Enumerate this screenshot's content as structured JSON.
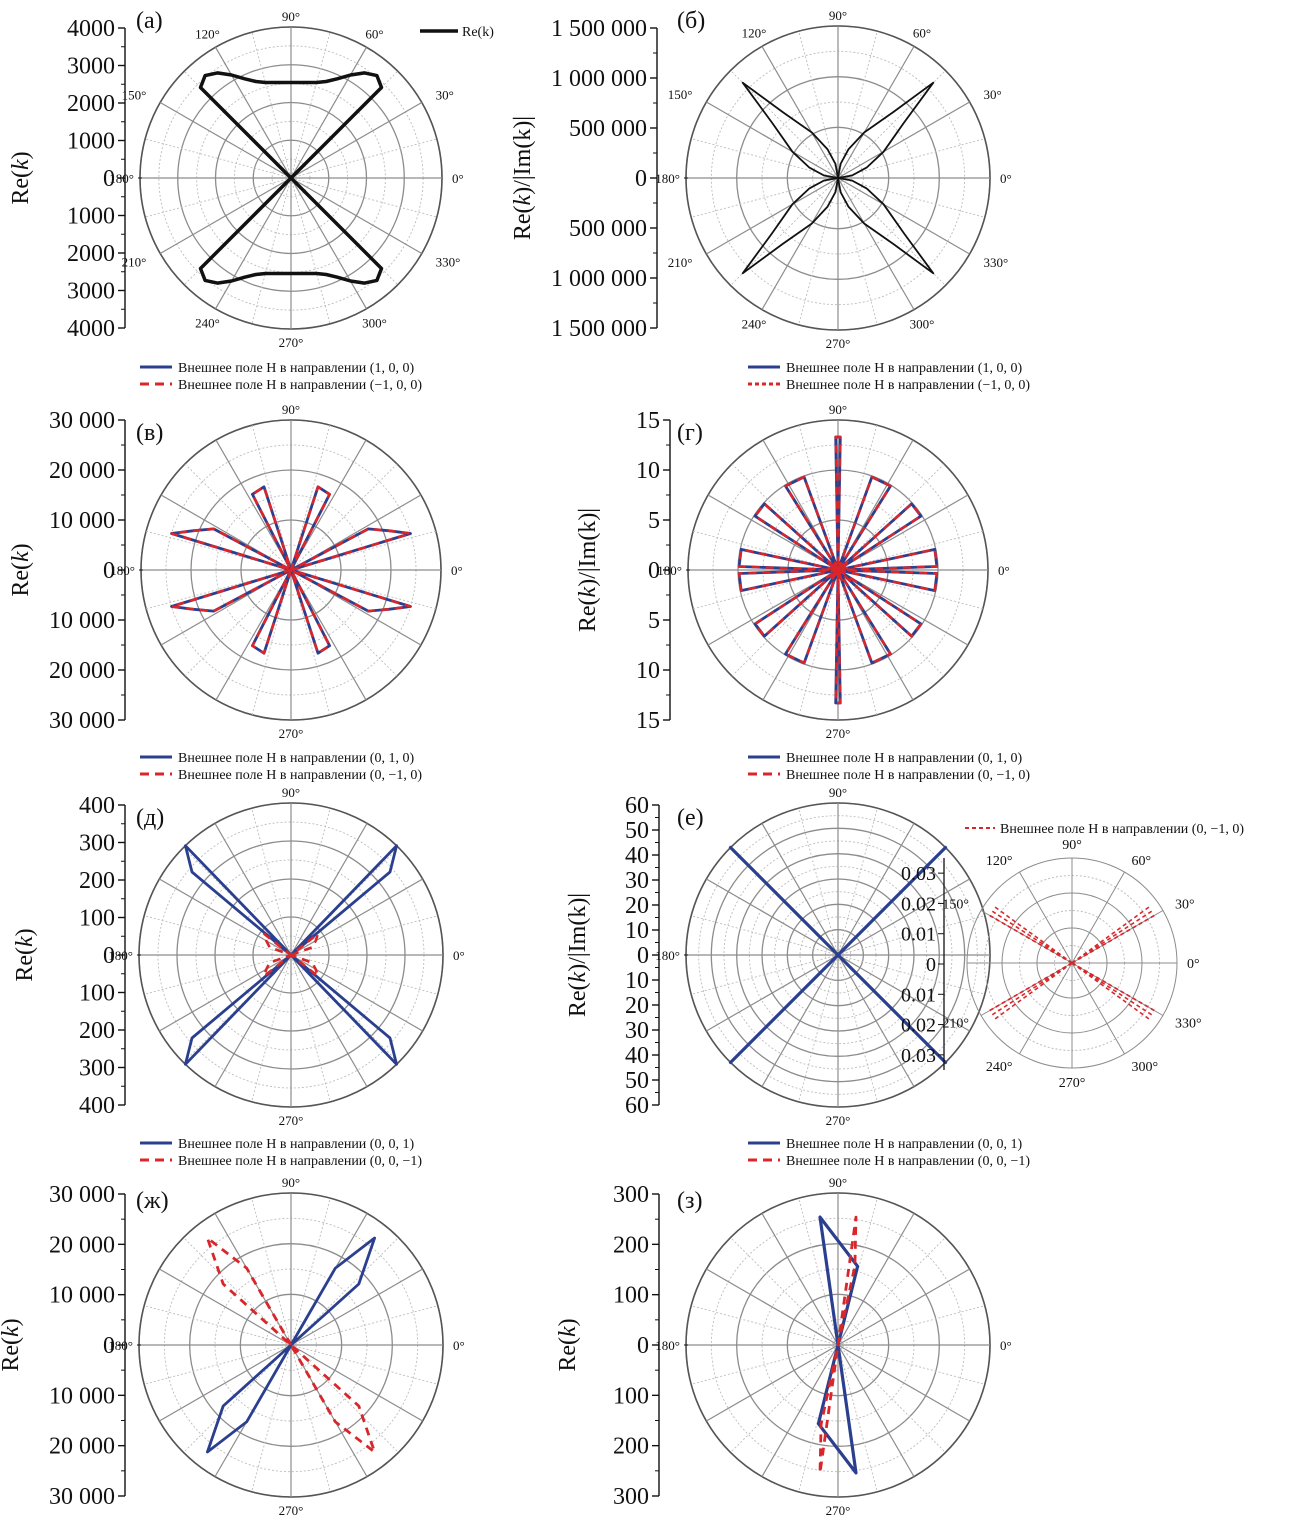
{
  "figure_title": "",
  "colors": {
    "black": "#111111",
    "blue": "#2b3f8f",
    "red": "#d9262b",
    "grid_major": "#8c8c8c",
    "grid_minor": "#bdbdbd"
  },
  "chart_data": [
    {
      "id": "a",
      "panel_label": "(а)",
      "type": "polar",
      "ylabel": "Re(",
      "ylabel_var": "k",
      "ylabel_tail": ")",
      "rmax": 4000,
      "ticks": [
        "4000",
        "3000",
        "2000",
        "1000",
        "0",
        "1000",
        "2000",
        "3000",
        "4000"
      ],
      "angle_labels": [
        "0°",
        "30°",
        "60°",
        "90°",
        "120°",
        "150°",
        "180°",
        "210°",
        "240°",
        "270°",
        "300°",
        "330°"
      ],
      "legend": [
        {
          "name": "Re(k)",
          "style": "solid",
          "color": "#111111"
        }
      ],
      "series": [
        {
          "name": "Re(k)",
          "shape": "a",
          "color": "#111111",
          "dash": "",
          "width": 3.5,
          "marker": true,
          "data_degrees": [
            0,
            45,
            50,
            55,
            60,
            65,
            70,
            75,
            80,
            85,
            90
          ],
          "data_values": [
            0,
            3390,
            3540,
            3400,
            3150,
            2900,
            2720,
            2620,
            2570,
            2540,
            2530
          ]
        }
      ]
    },
    {
      "id": "b",
      "panel_label": "(б)",
      "type": "polar",
      "ylabel": "Re(",
      "ylabel_var": "k",
      "ylabel_tail": ")/|Im(k)|",
      "rmax": 1500000,
      "ticks": [
        "1 500 000",
        "1 000 000",
        "500 000",
        "0",
        "500 000",
        "1 000 000",
        "1 500 000"
      ],
      "angle_labels": [
        "0°",
        "30°",
        "60°",
        "90°",
        "120°",
        "150°",
        "180°",
        "210°",
        "240°",
        "270°",
        "300°",
        "330°"
      ],
      "legend": [],
      "series": [
        {
          "name": "",
          "shape": "b",
          "color": "#111111",
          "dash": "",
          "width": 1.8,
          "data_degrees": [
            0,
            10,
            20,
            30,
            40,
            45,
            50,
            60,
            70,
            80,
            90
          ],
          "data_values": [
            0,
            140000,
            300000,
            520000,
            850000,
            1330000,
            850000,
            520000,
            300000,
            140000,
            0
          ]
        }
      ]
    },
    {
      "id": "v",
      "panel_label": "(в)",
      "type": "polar",
      "ylabel": "Re(",
      "ylabel_var": "k",
      "ylabel_tail": ")",
      "rmax": 30000,
      "ticks": [
        "30 000",
        "20 000",
        "10 000",
        "0",
        "10 000",
        "20 000",
        "30 000"
      ],
      "angle_labels": [
        "0°",
        "90°",
        "180°",
        "270°"
      ],
      "legend": [
        {
          "name": "Внешнее поле H в направлении (1, 0, 0)",
          "style": "solid",
          "color": "#2b3f8f"
        },
        {
          "name": "Внешнее поле H в направлении (−1, 0, 0)",
          "style": "dashed",
          "color": "#d9262b"
        }
      ],
      "series": [
        {
          "name": "Внешнее поле H в направлении (1, 0, 0)",
          "shape": "v",
          "color": "#2b3f8f",
          "dash": "",
          "width": 2.8
        },
        {
          "name": "Внешнее поле H в направлении (−1, 0, 0)",
          "shape": "v",
          "color": "#d9262b",
          "dash": "8,6",
          "width": 2.6
        }
      ]
    },
    {
      "id": "g",
      "panel_label": "(г)",
      "type": "polar",
      "ylabel": "Re(",
      "ylabel_var": "k",
      "ylabel_tail": ")/|Im(k)|",
      "rmax": 15,
      "ticks": [
        "15",
        "10",
        "5",
        "0",
        "5",
        "10",
        "15"
      ],
      "angle_labels": [
        "0°",
        "90°",
        "180°",
        "270°"
      ],
      "legend": [
        {
          "name": "Внешнее поле H в направлении (1, 0, 0)",
          "style": "solid",
          "color": "#2b3f8f"
        },
        {
          "name": "Внешнее поле H в направлении (−1, 0, 0)",
          "style": "dotted",
          "color": "#d9262b"
        }
      ],
      "series": [
        {
          "name": "Внешнее поле H в направлении (1, 0, 0)",
          "shape": "g",
          "color": "#2b3f8f",
          "dash": "",
          "width": 2.8
        },
        {
          "name": "Внешнее поле H в направлении (−1, 0, 0)",
          "shape": "g",
          "color": "#d9262b",
          "dash": "8,6",
          "width": 2.4
        }
      ]
    },
    {
      "id": "d",
      "panel_label": "(д)",
      "type": "polar",
      "ylabel": "Re(",
      "ylabel_var": "k",
      "ylabel_tail": ")",
      "rmax": 400,
      "ticks": [
        "400",
        "300",
        "200",
        "100",
        "0",
        "100",
        "200",
        "300",
        "400"
      ],
      "angle_labels": [
        "0°",
        "90°",
        "180°",
        "270°"
      ],
      "legend": [
        {
          "name": "Внешнее поле H в направлении (0, 1, 0)",
          "style": "solid",
          "color": "#2b3f8f"
        },
        {
          "name": "Внешнее поле H в направлении (0, −1, 0)",
          "style": "dashed",
          "color": "#d9262b"
        }
      ],
      "series": [
        {
          "name": "Внешнее поле H в направлении (0, 1, 0)",
          "shape": "d_blue",
          "color": "#2b3f8f",
          "dash": "",
          "width": 2.8
        },
        {
          "name": "Внешнее поле H в направлении (0, −1, 0)",
          "shape": "d_red",
          "color": "#d9262b",
          "dash": "8,6",
          "width": 2.6
        }
      ]
    },
    {
      "id": "e",
      "panel_label": "(е)",
      "type": "polar",
      "ylabel": "Re(",
      "ylabel_var": "k",
      "ylabel_tail": ")/|Im(k)|",
      "rmax": 60,
      "ticks": [
        "60",
        "50",
        "40",
        "30",
        "20",
        "10",
        "0",
        "10",
        "20",
        "30",
        "40",
        "50",
        "60"
      ],
      "angle_labels": [
        "90°",
        "180°",
        "270°"
      ],
      "legend": [
        {
          "name": "Внешнее поле H в направлении (0, 1, 0)",
          "style": "solid",
          "color": "#2b3f8f"
        },
        {
          "name": "Внешнее поле H в направлении (0, −1, 0)",
          "style": "dashed",
          "color": "#d9262b"
        }
      ],
      "series": [
        {
          "name": "Внешнее поле H в направлении (0, 1, 0)",
          "shape": "e",
          "color": "#2b3f8f",
          "dash": "",
          "width": 3.2
        }
      ],
      "inset": {
        "legend": {
          "name": "Внешнее поле H в направлении (0, −1, 0)",
          "style": "dotted",
          "color": "#d9262b"
        },
        "rmax": 0.035,
        "ticks": [
          "0.03",
          "0.02",
          "0.01",
          "0",
          "0.01",
          "0.02",
          "0.03"
        ],
        "angle_labels": [
          "0°",
          "30°",
          "60°",
          "90°",
          "120°",
          "150°",
          "210°",
          "240°",
          "270°",
          "300°",
          "330°"
        ]
      }
    },
    {
      "id": "zh",
      "panel_label": "(ж)",
      "type": "polar",
      "ylabel": "Re(",
      "ylabel_var": "k",
      "ylabel_tail": ")",
      "rmax": 30000,
      "ticks": [
        "30 000",
        "20 000",
        "10 000",
        "0",
        "10 000",
        "20 000",
        "30 000"
      ],
      "angle_labels": [
        "0°",
        "90°",
        "180°",
        "270°"
      ],
      "legend": [
        {
          "name": "Внешнее поле H в направлении (0, 0, 1)",
          "style": "solid",
          "color": "#2b3f8f"
        },
        {
          "name": "Внешнее поле H в направлении (0, 0, −1)",
          "style": "dashed",
          "color": "#d9262b"
        }
      ],
      "series": [
        {
          "name": "Внешнее поле H в направлении (0, 0, 1)",
          "shape": "zh_blue",
          "color": "#2b3f8f",
          "dash": "",
          "width": 2.8
        },
        {
          "name": "Внешнее поле H в направлении (0, 0, −1)",
          "shape": "zh_red",
          "color": "#d9262b",
          "dash": "8,6",
          "width": 2.8
        }
      ]
    },
    {
      "id": "z",
      "panel_label": "(з)",
      "type": "polar",
      "ylabel": "Re(",
      "ylabel_var": "k",
      "ylabel_tail": ")",
      "rmax": 300,
      "ticks": [
        "300",
        "200",
        "100",
        "0",
        "100",
        "200",
        "300"
      ],
      "angle_labels": [
        "0°",
        "90°",
        "180°",
        "270°"
      ],
      "legend": [
        {
          "name": "Внешнее поле H в направлении (0, 0, 1)",
          "style": "solid",
          "color": "#2b3f8f"
        },
        {
          "name": "Внешнее поле H в направлении (0, 0, −1)",
          "style": "dashed",
          "color": "#d9262b"
        }
      ],
      "series": [
        {
          "name": "Внешнее поле H в направлении (0, 0, 1)",
          "shape": "z_blue",
          "color": "#2b3f8f",
          "dash": "",
          "width": 3.2
        },
        {
          "name": "Внешнее поле H в направлении (0, 0, −1)",
          "shape": "z_red",
          "color": "#d9262b",
          "dash": "8,6",
          "width": 2.8
        }
      ]
    }
  ]
}
